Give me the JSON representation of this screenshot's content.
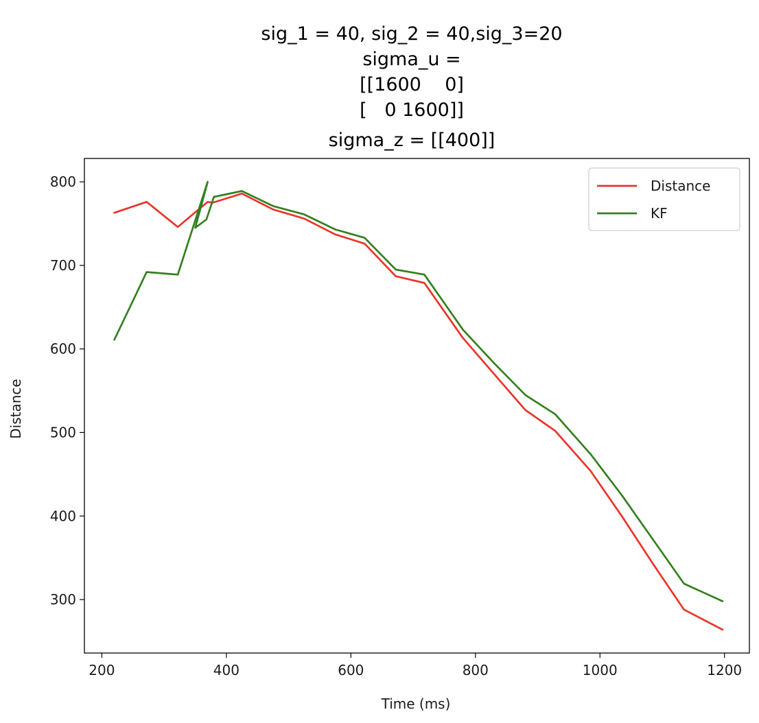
{
  "chart_data": {
    "type": "line",
    "title_lines": [
      "sig_1 = 40, sig_2 = 40,sig_3=20",
      "sigma_u =",
      "[[1600    0]",
      "[   0 1600]]",
      "sigma_z = [[400]]"
    ],
    "xlabel": "Time (ms)",
    "ylabel": "Distance",
    "xlim": [
      172,
      1240
    ],
    "ylim": [
      236,
      828
    ],
    "xticks": [
      200,
      400,
      600,
      800,
      1000,
      1200
    ],
    "yticks": [
      300,
      400,
      500,
      600,
      700,
      800
    ],
    "grid": false,
    "legend_position": "top-right",
    "series": [
      {
        "name": "Distance",
        "color": "#e8352b",
        "x": [
          220,
          272,
          322,
          370,
          378,
          425,
          475,
          525,
          575,
          622,
          672,
          718,
          780,
          830,
          880,
          928,
          985,
          1035,
          1085,
          1135,
          1197
        ],
        "y": [
          763,
          776,
          746,
          776,
          775,
          786,
          767,
          756,
          737,
          726,
          687,
          679,
          613,
          570,
          527,
          502,
          454,
          400,
          343,
          288,
          264
        ]
      },
      {
        "name": "KF",
        "color": "#33801f",
        "x": [
          220,
          272,
          322,
          370,
          350,
          368,
          380,
          425,
          475,
          525,
          575,
          622,
          672,
          718,
          780,
          830,
          880,
          928,
          985,
          1035,
          1085,
          1135,
          1197
        ],
        "y": [
          611,
          692,
          689,
          800,
          745,
          755,
          782,
          789,
          771,
          761,
          743,
          733,
          695,
          689,
          623,
          583,
          545,
          522,
          474,
          425,
          372,
          319,
          298
        ]
      }
    ]
  }
}
